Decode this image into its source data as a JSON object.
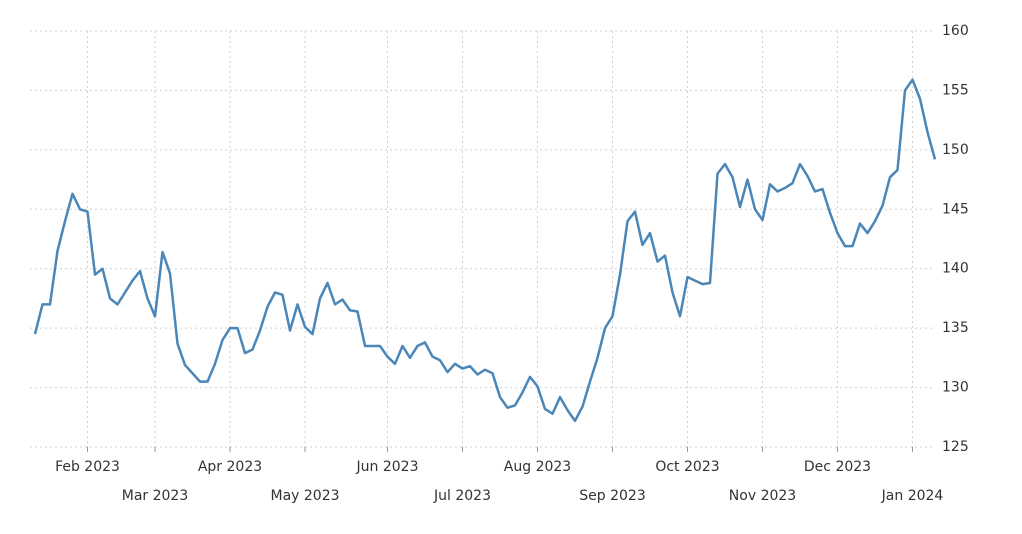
{
  "chart_data": {
    "type": "line",
    "categories": [
      null,
      null,
      null,
      null,
      null,
      null,
      null,
      "Feb 2023",
      null,
      null,
      null,
      null,
      null,
      null,
      null,
      null,
      "Mar 2023",
      null,
      null,
      null,
      null,
      null,
      null,
      null,
      null,
      null,
      "Apr 2023",
      null,
      null,
      null,
      null,
      null,
      null,
      null,
      null,
      null,
      "May 2023",
      null,
      null,
      null,
      null,
      null,
      null,
      null,
      null,
      null,
      null,
      "Jun 2023",
      null,
      null,
      null,
      null,
      null,
      null,
      null,
      null,
      null,
      "Jul 2023",
      null,
      null,
      null,
      null,
      null,
      null,
      null,
      null,
      null,
      "Aug 2023",
      null,
      null,
      null,
      null,
      null,
      null,
      null,
      null,
      null,
      "Sep 2023",
      null,
      null,
      null,
      null,
      null,
      null,
      null,
      null,
      null,
      "Oct 2023",
      null,
      null,
      null,
      null,
      null,
      null,
      null,
      null,
      null,
      "Nov 2023",
      null,
      null,
      null,
      null,
      null,
      null,
      null,
      null,
      null,
      "Dec 2023",
      null,
      null,
      null,
      null,
      null,
      null,
      null,
      null,
      null,
      "Jan 2024",
      null,
      null,
      null
    ],
    "series": [
      {
        "color": "#4a86b8",
        "values": [
          134.5,
          137,
          137,
          141.5,
          144,
          146.3,
          145,
          144.8,
          139.5,
          140,
          137.5,
          137,
          138,
          139,
          139.8,
          137.5,
          136,
          141.4,
          139.6,
          133.7,
          131.9,
          131.2,
          130.5,
          130.5,
          132,
          134,
          135,
          135,
          132.9,
          133.2,
          134.8,
          136.8,
          138,
          137.8,
          134.8,
          137,
          135.1,
          134.5,
          137.5,
          138.8,
          137,
          137.4,
          136.5,
          136.4,
          133.5,
          133.5,
          133.5,
          132.6,
          132,
          133.5,
          132.5,
          133.5,
          133.8,
          132.6,
          132.3,
          131.3,
          132,
          131.6,
          131.8,
          131.1,
          131.5,
          131.2,
          129.2,
          128.3,
          128.5,
          129.6,
          130.9,
          130.1,
          128.2,
          127.8,
          129.2,
          128.1,
          127.2,
          128.4,
          130.5,
          132.5,
          135,
          136,
          139.5,
          144,
          144.8,
          142,
          143,
          140.6,
          141.1,
          138,
          136,
          139.3,
          139,
          138.7,
          138.8,
          148,
          148.8,
          147.7,
          145.2,
          147.5,
          145,
          144.1,
          147.1,
          146.5,
          146.8,
          147.2,
          148.8,
          147.8,
          146.5,
          146.7,
          144.7,
          143,
          141.9,
          141.9,
          143.8,
          143,
          144,
          145.3,
          147.7,
          148.3,
          155,
          155.9,
          154.3,
          151.5,
          149.2
        ]
      }
    ],
    "ylim": [
      125,
      160
    ],
    "yticks": [
      125,
      130,
      135,
      140,
      145,
      150,
      155,
      160
    ],
    "grid": true
  }
}
